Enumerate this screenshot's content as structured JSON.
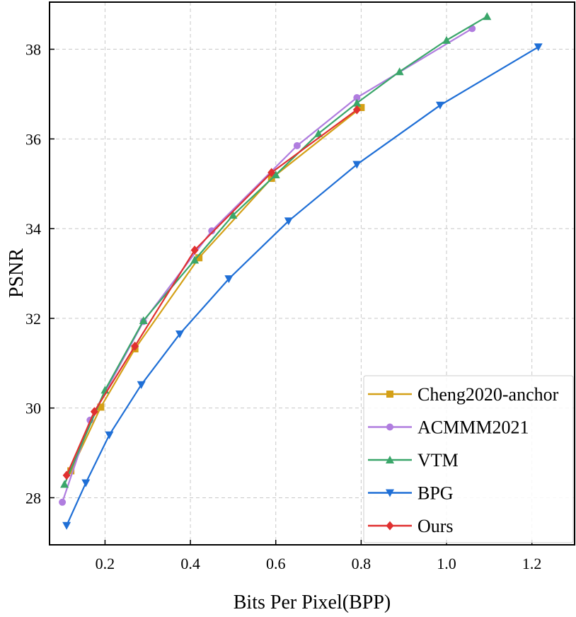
{
  "chart_data": {
    "type": "line",
    "title": "",
    "xlabel": "Bits Per Pixel(BPP)",
    "ylabel": "PSNR",
    "xlim": [
      0.07,
      1.3
    ],
    "ylim": [
      26.95,
      39.05
    ],
    "xticks": [
      0.2,
      0.4,
      0.6,
      0.8,
      1.0,
      1.2
    ],
    "xtick_labels": [
      "0.2",
      "0.4",
      "0.6",
      "0.8",
      "1.0",
      "1.2"
    ],
    "yticks": [
      28,
      30,
      32,
      34,
      36,
      38
    ],
    "ytick_labels": [
      "28",
      "30",
      "32",
      "34",
      "36",
      "38"
    ],
    "grid": true,
    "legend_position": "bottom-right",
    "series": [
      {
        "name": "Cheng2020-anchor",
        "color": "#d4a017",
        "marker": "square",
        "x": [
          0.12,
          0.19,
          0.27,
          0.42,
          0.59,
          0.8
        ],
        "y": [
          28.6,
          30.02,
          31.32,
          33.35,
          35.12,
          36.7
        ]
      },
      {
        "name": "ACMMM2021",
        "color": "#b07ddf",
        "marker": "circle",
        "x": [
          0.1,
          0.165,
          0.29,
          0.45,
          0.65,
          0.79,
          1.06
        ],
        "y": [
          27.9,
          29.73,
          31.93,
          33.95,
          35.85,
          36.92,
          38.46
        ]
      },
      {
        "name": "VTM",
        "color": "#3aa66a",
        "marker": "triangle-up",
        "x": [
          0.105,
          0.2,
          0.29,
          0.41,
          0.5,
          0.6,
          0.7,
          0.79,
          0.89,
          1.0,
          1.095
        ],
        "y": [
          28.3,
          30.4,
          31.95,
          33.3,
          34.3,
          35.2,
          36.12,
          36.8,
          37.5,
          38.2,
          38.73
        ]
      },
      {
        "name": "BPG",
        "color": "#1f6fd6",
        "marker": "triangle-down",
        "x": [
          0.11,
          0.155,
          0.21,
          0.285,
          0.375,
          0.49,
          0.63,
          0.79,
          0.985,
          1.215
        ],
        "y": [
          27.38,
          28.33,
          29.4,
          30.52,
          31.65,
          32.88,
          34.17,
          35.43,
          36.75,
          38.05
        ]
      },
      {
        "name": "Ours",
        "color": "#e03030",
        "marker": "diamond",
        "x": [
          0.11,
          0.175,
          0.27,
          0.41,
          0.59,
          0.79
        ],
        "y": [
          28.5,
          29.92,
          31.38,
          33.52,
          35.25,
          36.65
        ]
      }
    ]
  }
}
